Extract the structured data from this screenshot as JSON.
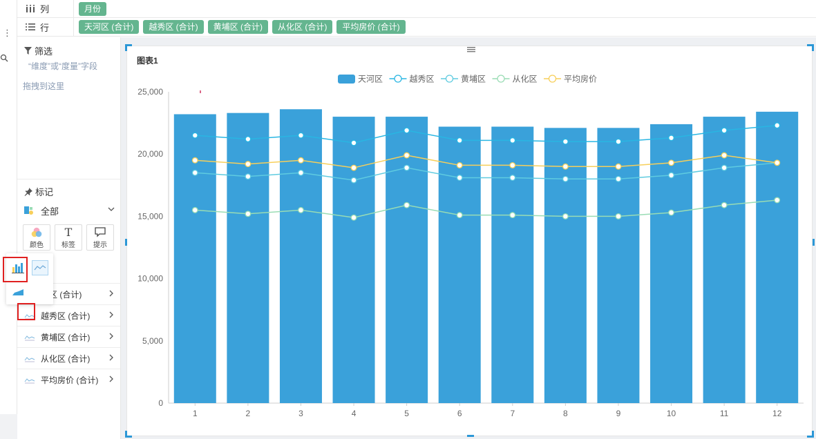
{
  "columns_shelf": {
    "label": "列",
    "pills": [
      "月份"
    ]
  },
  "rows_shelf": {
    "label": "行",
    "pills": [
      "天河区 (合计)",
      "越秀区 (合计)",
      "黄埔区 (合计)",
      "从化区 (合计)",
      "平均房价 (合计)"
    ]
  },
  "filter": {
    "title": "筛选",
    "hint_line1": "“维度”或“度量”字段",
    "hint_line2": "拖拽到这里"
  },
  "marks": {
    "title": "标记",
    "selected": "全部",
    "buttons": [
      {
        "label": "颜色",
        "icon": "color-icon"
      },
      {
        "label": "标签",
        "glyph": "T",
        "icon": "label-icon"
      },
      {
        "label": "提示",
        "icon": "tooltip-icon"
      }
    ],
    "series": [
      {
        "label": "河区 (合计)",
        "icon": "area-chart-icon"
      },
      {
        "label": "越秀区 (合计)",
        "icon": "line-chart-icon"
      },
      {
        "label": "黄埔区 (合计)",
        "icon": "line-chart-icon"
      },
      {
        "label": "从化区 (合计)",
        "icon": "line-chart-icon"
      },
      {
        "label": "平均房价 (合计)",
        "icon": "line-chart-icon"
      }
    ]
  },
  "chart_title": "图表1",
  "colors": {
    "bar": "#3aa1da",
    "yuexiu": "#29b6e3",
    "huangpu": "#5fcbe0",
    "conghua": "#99dcb4",
    "avg": "#f7cf5a",
    "pill": "#64b58f",
    "highlight": "#e02020",
    "selection": "#2b97d6"
  },
  "chart_data": {
    "type": "bar",
    "categories": [
      "1",
      "2",
      "3",
      "4",
      "5",
      "6",
      "7",
      "8",
      "9",
      "10",
      "11",
      "12"
    ],
    "series": [
      {
        "name": "天河区",
        "kind": "bar",
        "values": [
          23200,
          23300,
          23600,
          23000,
          23000,
          22200,
          22200,
          22100,
          22100,
          22400,
          23000,
          23400
        ]
      },
      {
        "name": "越秀区",
        "kind": "line",
        "values": [
          21500,
          21200,
          21500,
          20900,
          21900,
          21100,
          21100,
          21000,
          21000,
          21300,
          21900,
          22300
        ]
      },
      {
        "name": "黄埔区",
        "kind": "line",
        "values": [
          18500,
          18200,
          18500,
          17900,
          18900,
          18100,
          18100,
          18000,
          18000,
          18300,
          18900,
          19300
        ]
      },
      {
        "name": "从化区",
        "kind": "line",
        "values": [
          15500,
          15200,
          15500,
          14900,
          15900,
          15100,
          15100,
          15000,
          15000,
          15300,
          15900,
          16300
        ]
      },
      {
        "name": "平均房价",
        "kind": "line",
        "values": [
          19500,
          19200,
          19500,
          18900,
          19900,
          19100,
          19100,
          19000,
          19000,
          19300,
          19900,
          19300
        ]
      }
    ],
    "yticks": [
      "0",
      "5,000",
      "10,000",
      "15,000",
      "20,000",
      "25,000"
    ],
    "ylim": [
      0,
      25000
    ],
    "legend_position": "top-center",
    "grid": false
  }
}
